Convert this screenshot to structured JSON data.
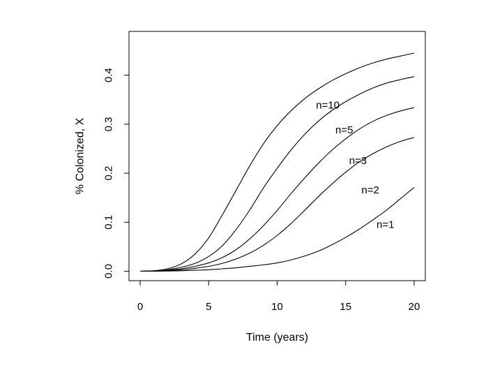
{
  "chart_data": {
    "type": "line",
    "title": "",
    "xlabel": "Time (years)",
    "ylabel": "% Colonized, X",
    "xlim": [
      0,
      20
    ],
    "ylim": [
      0,
      0.45
    ],
    "xticks": [
      0,
      5,
      10,
      15,
      20
    ],
    "yticks": [
      0.0,
      0.1,
      0.2,
      0.3,
      0.4
    ],
    "xtick_labels": [
      "0",
      "5",
      "10",
      "15",
      "20"
    ],
    "ytick_labels": [
      "0.0",
      "0.1",
      "0.2",
      "0.3",
      "0.4"
    ],
    "grid": false,
    "x": [
      0,
      1,
      2,
      3,
      4,
      5,
      6,
      7,
      8,
      9,
      10,
      11,
      12,
      13,
      14,
      15,
      16,
      17,
      18,
      19,
      20
    ],
    "series": [
      {
        "name": "n=10",
        "values": [
          0,
          0.001,
          0.005,
          0.015,
          0.035,
          0.068,
          0.115,
          0.165,
          0.215,
          0.26,
          0.297,
          0.327,
          0.352,
          0.372,
          0.389,
          0.403,
          0.415,
          0.425,
          0.433,
          0.439,
          0.445
        ]
      },
      {
        "name": "n=5",
        "values": [
          0,
          0.001,
          0.003,
          0.008,
          0.016,
          0.03,
          0.052,
          0.085,
          0.125,
          0.17,
          0.21,
          0.247,
          0.279,
          0.306,
          0.328,
          0.346,
          0.361,
          0.374,
          0.384,
          0.391,
          0.397
        ]
      },
      {
        "name": "n=3",
        "values": [
          0,
          0.0005,
          0.002,
          0.005,
          0.01,
          0.017,
          0.028,
          0.044,
          0.066,
          0.093,
          0.124,
          0.158,
          0.19,
          0.22,
          0.247,
          0.27,
          0.29,
          0.306,
          0.318,
          0.327,
          0.334
        ]
      },
      {
        "name": "n=2",
        "values": [
          0,
          0.0003,
          0.0012,
          0.003,
          0.006,
          0.01,
          0.016,
          0.025,
          0.037,
          0.053,
          0.073,
          0.097,
          0.124,
          0.152,
          0.178,
          0.202,
          0.223,
          0.24,
          0.254,
          0.265,
          0.273
        ]
      },
      {
        "name": "n=1",
        "values": [
          0,
          0.0001,
          0.0004,
          0.001,
          0.002,
          0.003,
          0.005,
          0.007,
          0.01,
          0.013,
          0.017,
          0.023,
          0.031,
          0.041,
          0.054,
          0.069,
          0.086,
          0.105,
          0.125,
          0.148,
          0.171
        ]
      }
    ],
    "series_labels": [
      {
        "text": "n=10",
        "x": 13.7,
        "y": 0.338
      },
      {
        "text": "n=5",
        "x": 14.9,
        "y": 0.288
      },
      {
        "text": "n=3",
        "x": 15.9,
        "y": 0.225
      },
      {
        "text": "n=2",
        "x": 16.8,
        "y": 0.165
      },
      {
        "text": "n=1",
        "x": 17.9,
        "y": 0.095
      }
    ]
  }
}
